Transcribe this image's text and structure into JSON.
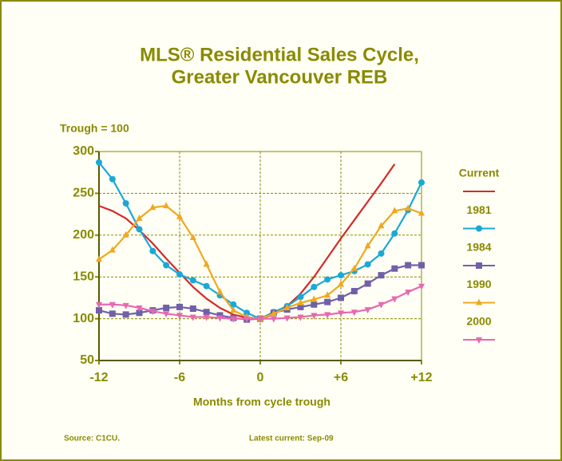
{
  "chart_data": {
    "type": "line",
    "title": [
      "MLS® Residential Sales Cycle,",
      "Greater Vancouver REB"
    ],
    "y_label": "Trough = 100",
    "x_label": "Months from cycle trough",
    "notes": [
      "Source: C1CU.",
      "Latest current: Sep-09"
    ],
    "x": [
      -12,
      -11,
      -10,
      -9,
      -8,
      -7,
      -6,
      -5,
      -4,
      -3,
      -2,
      -1,
      0,
      1,
      2,
      3,
      4,
      5,
      6,
      7,
      8,
      9,
      10,
      11,
      12
    ],
    "xlim": [
      -12,
      12
    ],
    "xticks": [
      -12,
      -6,
      0,
      {
        "value": 6,
        "label": "+6"
      },
      {
        "value": 12,
        "label": "+12"
      }
    ],
    "ylim": [
      50,
      300
    ],
    "yticks": [
      50,
      100,
      150,
      200,
      250,
      300
    ],
    "grid": true,
    "legend": "right",
    "series": [
      {
        "name": "Current",
        "color": "#d42a2a",
        "values": [
          235,
          229,
          220,
          206,
          190,
          172,
          155,
          138,
          124,
          113,
          105,
          101,
          100,
          105,
          115,
          130,
          150,
          173,
          196,
          218,
          240,
          262,
          285,
          null,
          null
        ]
      },
      {
        "name": "1981",
        "color": "#1aa8d8",
        "marker": "circle",
        "values": [
          287,
          267,
          238,
          207,
          181,
          164,
          153,
          146,
          139,
          128,
          117,
          107,
          100,
          108,
          115,
          126,
          138,
          147,
          152,
          157,
          165,
          178,
          202,
          230,
          263
        ]
      },
      {
        "name": "1984",
        "color": "#7060a8",
        "marker": "square",
        "values": [
          110,
          106,
          105,
          107,
          110,
          113,
          114,
          112,
          108,
          104,
          101,
          99,
          100,
          107,
          111,
          114,
          117,
          120,
          125,
          133,
          142,
          152,
          160,
          164,
          164
        ]
      },
      {
        "name": "1990",
        "color": "#f0a820",
        "marker": "triangle",
        "values": [
          171,
          182,
          200,
          220,
          233,
          235,
          222,
          197,
          165,
          132,
          110,
          102,
          100,
          106,
          113,
          119,
          123,
          128,
          141,
          160,
          187,
          211,
          229,
          232,
          226
        ]
      },
      {
        "name": "2000",
        "color": "#e868b0",
        "marker": "triangle-down",
        "values": [
          117,
          117,
          116,
          113,
          109,
          106,
          104,
          102,
          102,
          101,
          100,
          100,
          100,
          100,
          101,
          102,
          104,
          105,
          107,
          108,
          111,
          117,
          124,
          132,
          139
        ]
      }
    ]
  }
}
